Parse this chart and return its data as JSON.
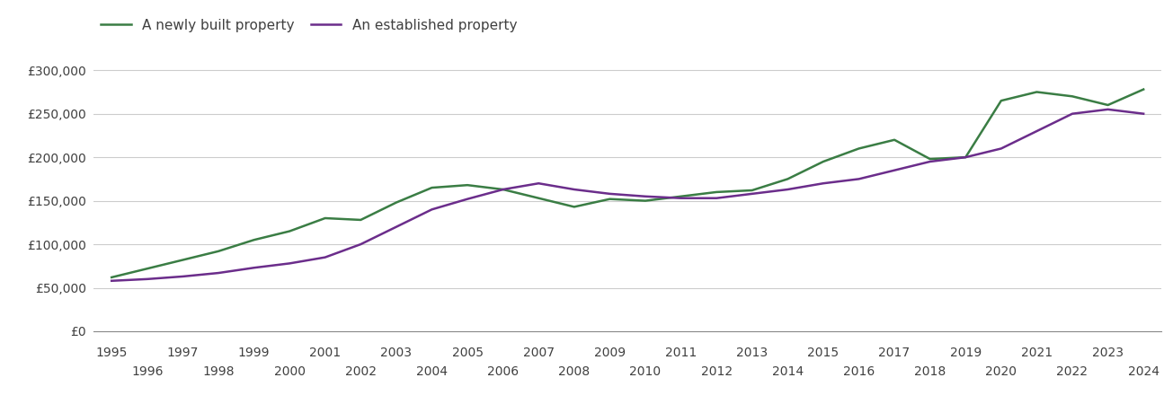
{
  "years": [
    1995,
    1996,
    1997,
    1998,
    1999,
    2000,
    2001,
    2002,
    2003,
    2004,
    2005,
    2006,
    2007,
    2008,
    2009,
    2010,
    2011,
    2012,
    2013,
    2014,
    2015,
    2016,
    2017,
    2018,
    2019,
    2020,
    2021,
    2022,
    2023,
    2024
  ],
  "new_build": [
    62000,
    72000,
    82000,
    92000,
    105000,
    115000,
    130000,
    128000,
    148000,
    165000,
    168000,
    163000,
    153000,
    143000,
    152000,
    150000,
    155000,
    160000,
    162000,
    175000,
    195000,
    210000,
    220000,
    198000,
    200000,
    265000,
    275000,
    270000,
    260000,
    278000
  ],
  "established": [
    58000,
    60000,
    63000,
    67000,
    73000,
    78000,
    85000,
    100000,
    120000,
    140000,
    152000,
    163000,
    170000,
    163000,
    158000,
    155000,
    153000,
    153000,
    158000,
    163000,
    170000,
    175000,
    185000,
    195000,
    200000,
    210000,
    230000,
    250000,
    255000,
    250000
  ],
  "new_build_color": "#3a7d44",
  "established_color": "#6b2d8b",
  "line_width": 1.8,
  "legend_labels": [
    "A newly built property",
    "An established property"
  ],
  "ylim": [
    0,
    325000
  ],
  "yticks": [
    0,
    50000,
    100000,
    150000,
    200000,
    250000,
    300000
  ],
  "ytick_labels": [
    "£0",
    "£50,000",
    "£100,000",
    "£150,000",
    "£200,000",
    "£250,000",
    "£300,000"
  ],
  "xtick_odd": [
    1995,
    1997,
    1999,
    2001,
    2003,
    2005,
    2007,
    2009,
    2011,
    2013,
    2015,
    2017,
    2019,
    2021,
    2023
  ],
  "xtick_even": [
    1996,
    1998,
    2000,
    2002,
    2004,
    2006,
    2008,
    2010,
    2012,
    2014,
    2016,
    2018,
    2020,
    2022,
    2024
  ],
  "background_color": "#ffffff",
  "grid_color": "#cccccc",
  "font_color": "#404040",
  "font_size_ticks": 10,
  "font_size_legend": 11
}
